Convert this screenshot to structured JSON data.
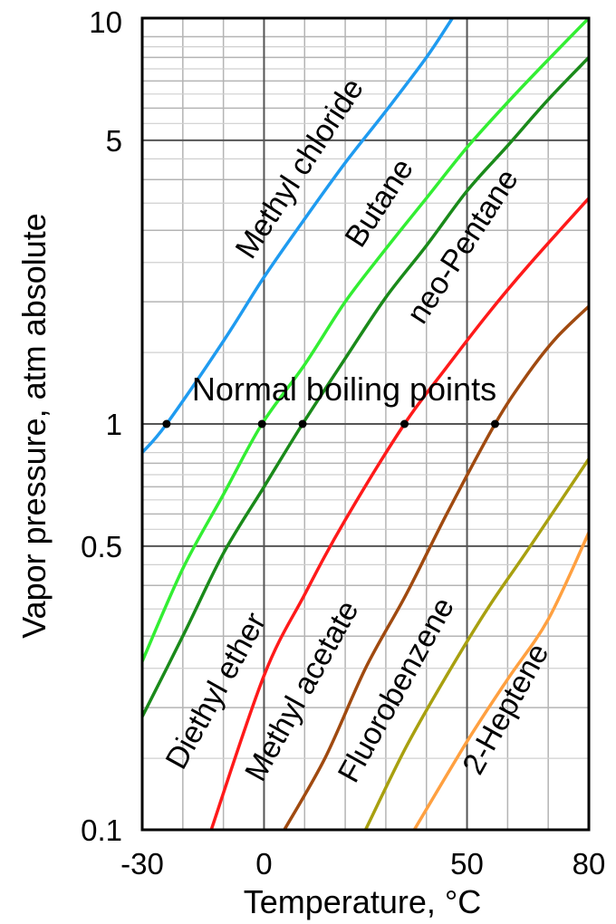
{
  "chart_data": {
    "type": "line",
    "title": "",
    "xlabel": "Temperature, °C",
    "ylabel": "Vapor pressure, atm absolute",
    "xlim": [
      -30,
      80
    ],
    "ylim": [
      0.1,
      10
    ],
    "yscale": "log",
    "grid": true,
    "x_ticks": [
      -30,
      0,
      50,
      80
    ],
    "x_tick_labels": [
      "-30",
      "0",
      "50",
      "80"
    ],
    "y_ticks": [
      0.1,
      0.5,
      1,
      5,
      10
    ],
    "y_tick_labels": [
      "0.1",
      "0.5",
      "1",
      "5",
      "10"
    ],
    "series": [
      {
        "name": "Methyl chloride",
        "color": "#1f9bf0",
        "x": [
          -30,
          -24,
          -10,
          0,
          10,
          20,
          30,
          40,
          46.4
        ],
        "y": [
          0.85,
          1.0,
          1.6,
          2.3,
          3.2,
          4.4,
          5.9,
          8.0,
          10.0
        ]
      },
      {
        "name": "Butane",
        "color": "#33ee33",
        "x": [
          -30,
          -20,
          -10,
          -0.5,
          10,
          20,
          30,
          40,
          50,
          60,
          70,
          80
        ],
        "y": [
          0.26,
          0.44,
          0.67,
          1.0,
          1.4,
          2.0,
          2.7,
          3.6,
          4.8,
          6.2,
          7.9,
          10.0
        ]
      },
      {
        "name": "neo-Pentane",
        "color": "#1a8a1a",
        "x": [
          -30,
          -20,
          -10,
          0,
          9.5,
          20,
          30,
          40,
          50,
          60,
          70,
          80
        ],
        "y": [
          0.19,
          0.3,
          0.48,
          0.7,
          1.0,
          1.45,
          2.05,
          2.75,
          3.75,
          4.85,
          6.3,
          8.0
        ]
      },
      {
        "name": "Diethyl ether",
        "color": "#ff1a1a",
        "x": [
          -13,
          0,
          10,
          20,
          34.6,
          45,
          55,
          65,
          80
        ],
        "y": [
          0.1,
          0.24,
          0.38,
          0.58,
          1.0,
          1.38,
          1.86,
          2.45,
          3.6
        ]
      },
      {
        "name": "Methyl acetate",
        "color": "#a04a10",
        "x": [
          5,
          15,
          25,
          35,
          45,
          56.9,
          65,
          72,
          80
        ],
        "y": [
          0.1,
          0.15,
          0.25,
          0.38,
          0.6,
          1.0,
          1.33,
          1.63,
          1.95
        ]
      },
      {
        "name": "Fluorobenzene",
        "color": "#a8a010",
        "x": [
          25,
          35,
          45,
          55,
          65,
          80
        ],
        "y": [
          0.1,
          0.16,
          0.24,
          0.35,
          0.49,
          0.82
        ]
      },
      {
        "name": "2-Heptene",
        "color": "#ffa040",
        "x": [
          37,
          50,
          60,
          70,
          80
        ],
        "y": [
          0.1,
          0.165,
          0.235,
          0.33,
          0.54
        ]
      }
    ],
    "annotations": [
      {
        "text": "Normal boiling points",
        "x": 1,
        "y": 1.28
      }
    ],
    "boiling_points": [
      {
        "x": -24,
        "y": 1
      },
      {
        "x": -0.5,
        "y": 1
      },
      {
        "x": 9.5,
        "y": 1
      },
      {
        "x": 34.6,
        "y": 1
      },
      {
        "x": 56.9,
        "y": 1
      }
    ]
  }
}
